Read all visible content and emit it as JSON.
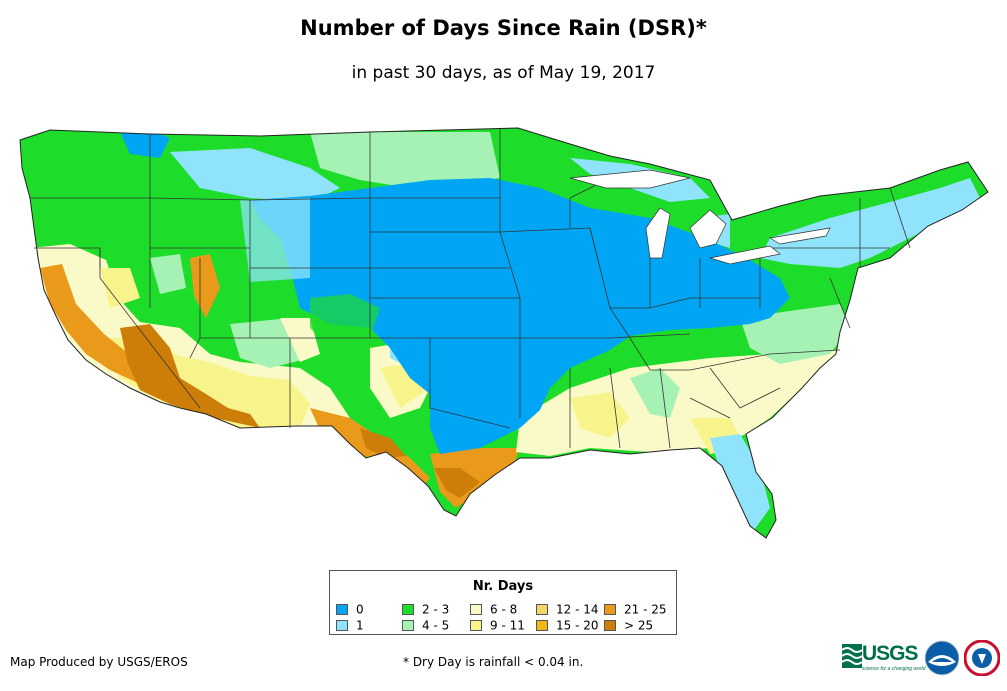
{
  "title": "Number of Days Since Rain (DSR)*",
  "subtitle": "in past 30 days, as of May 19, 2017",
  "legend": {
    "title": "Nr. Days",
    "items": [
      {
        "label": "0",
        "color": "#00a6f4"
      },
      {
        "label": "1",
        "color": "#8fe4fc"
      },
      {
        "label": "2 - 3",
        "color": "#1edc2a"
      },
      {
        "label": "4 - 5",
        "color": "#a6f2b4"
      },
      {
        "label": "6 - 8",
        "color": "#fafac8"
      },
      {
        "label": "9 - 11",
        "color": "#f8f48c"
      },
      {
        "label": "12 - 14",
        "color": "#f3d76a"
      },
      {
        "label": "15 - 20",
        "color": "#f4b814"
      },
      {
        "label": "21 - 25",
        "color": "#ea9a1a"
      },
      {
        "label": "> 25",
        "color": "#cc7e08"
      }
    ]
  },
  "footer": {
    "credit": "Map Produced by USGS/EROS",
    "note": "* Dry Day is rainfall < 0.04 in."
  },
  "logos": {
    "usgs": "USGS",
    "usgs_tagline": "science for a changing world",
    "icons": [
      "usgs-logo-icon",
      "noaa-logo-icon",
      "nws-logo-icon"
    ]
  }
}
